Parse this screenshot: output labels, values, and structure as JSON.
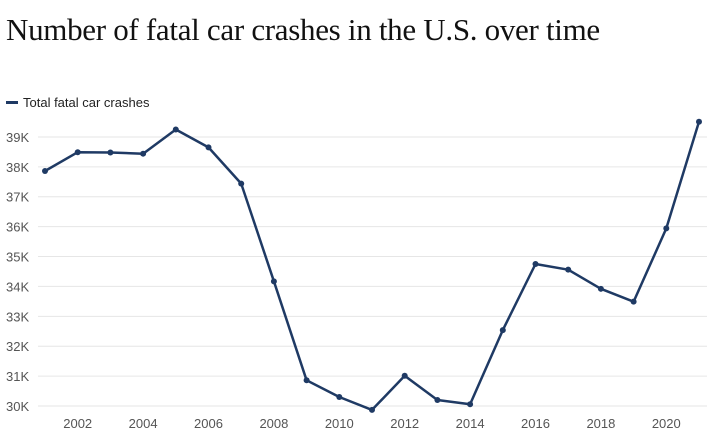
{
  "chart_data": {
    "type": "line",
    "title": "Number of fatal car crashes in the U.S. over time",
    "xlabel": "",
    "ylabel": "",
    "legend": "top-left",
    "grid": "horizontal",
    "line_color": "#1f3a64",
    "grid_color": "#e6e6e6",
    "xlim": [
      2001,
      2021
    ],
    "ylim": [
      30000,
      39500
    ],
    "x_ticks": [
      {
        "value": 2002,
        "label": "2002"
      },
      {
        "value": 2004,
        "label": "2004"
      },
      {
        "value": 2006,
        "label": "2006"
      },
      {
        "value": 2008,
        "label": "2008"
      },
      {
        "value": 2010,
        "label": "2010"
      },
      {
        "value": 2012,
        "label": "2012"
      },
      {
        "value": 2014,
        "label": "2014"
      },
      {
        "value": 2016,
        "label": "2016"
      },
      {
        "value": 2018,
        "label": "2018"
      },
      {
        "value": 2020,
        "label": "2020"
      }
    ],
    "y_ticks": [
      {
        "value": 30000,
        "label": "30K"
      },
      {
        "value": 31000,
        "label": "31K"
      },
      {
        "value": 32000,
        "label": "32K"
      },
      {
        "value": 33000,
        "label": "33K"
      },
      {
        "value": 34000,
        "label": "34K"
      },
      {
        "value": 35000,
        "label": "35K"
      },
      {
        "value": 36000,
        "label": "36K"
      },
      {
        "value": 37000,
        "label": "37K"
      },
      {
        "value": 38000,
        "label": "38K"
      },
      {
        "value": 39000,
        "label": "39K"
      }
    ],
    "x": [
      2001,
      2002,
      2003,
      2004,
      2005,
      2006,
      2007,
      2008,
      2009,
      2010,
      2011,
      2012,
      2013,
      2014,
      2015,
      2016,
      2017,
      2018,
      2019,
      2020,
      2021
    ],
    "series": [
      {
        "name": "Total fatal car crashes",
        "values": [
          37860,
          38490,
          38480,
          38440,
          39250,
          38650,
          37440,
          34170,
          30860,
          30300,
          29870,
          31010,
          30200,
          30060,
          32540,
          34750,
          34560,
          33920,
          33490,
          35940,
          39510
        ]
      }
    ]
  }
}
